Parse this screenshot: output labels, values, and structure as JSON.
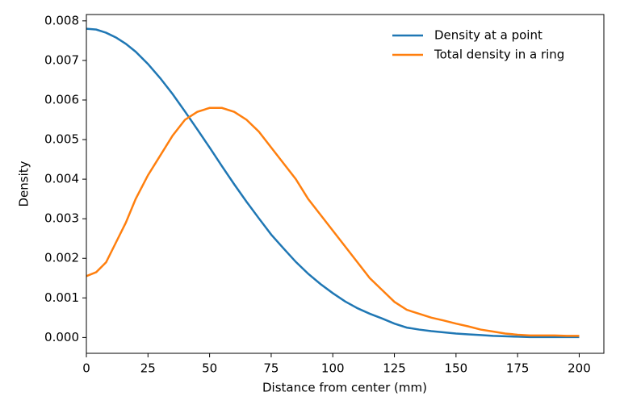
{
  "chart_data": {
    "type": "line",
    "xlabel": "Distance from center (mm)",
    "ylabel": "Density",
    "x": [
      0,
      4,
      8,
      12,
      16,
      20,
      25,
      30,
      35,
      40,
      45,
      50,
      55,
      60,
      65,
      70,
      75,
      80,
      85,
      90,
      95,
      100,
      105,
      110,
      115,
      120,
      125,
      130,
      135,
      140,
      145,
      150,
      155,
      160,
      165,
      170,
      175,
      180,
      185,
      190,
      195,
      200
    ],
    "series": [
      {
        "name": "Density at a point",
        "color": "#1f77b4",
        "values": [
          0.0078,
          0.00778,
          0.0077,
          0.00758,
          0.00742,
          0.00722,
          0.00691,
          0.00655,
          0.00615,
          0.00571,
          0.00526,
          0.0048,
          0.00433,
          0.00387,
          0.00343,
          0.00301,
          0.0026,
          0.00225,
          0.00191,
          0.00161,
          0.00135,
          0.00112,
          0.00091,
          0.00074,
          0.0006,
          0.00048,
          0.00035,
          0.00025,
          0.0002,
          0.00016,
          0.00013,
          0.0001,
          8e-05,
          6e-05,
          4e-05,
          3e-05,
          2e-05,
          1e-05,
          1e-05,
          1e-05,
          1e-05,
          1e-05
        ]
      },
      {
        "name": "Total density in a ring",
        "color": "#ff7f0e",
        "values": [
          0.00155,
          0.00165,
          0.0019,
          0.0024,
          0.0029,
          0.0035,
          0.0041,
          0.0046,
          0.0051,
          0.0055,
          0.0057,
          0.0058,
          0.0058,
          0.0057,
          0.0055,
          0.0052,
          0.0048,
          0.0044,
          0.004,
          0.0035,
          0.0031,
          0.0027,
          0.0023,
          0.0019,
          0.0015,
          0.0012,
          0.0009,
          0.0007,
          0.0006,
          0.0005,
          0.00043,
          0.00035,
          0.00028,
          0.0002,
          0.00015,
          0.0001,
          7e-05,
          5e-05,
          5e-05,
          5e-05,
          4e-05,
          4e-05
        ]
      }
    ],
    "xlim": [
      0,
      210
    ],
    "ylim": [
      -0.0004,
      0.00816
    ],
    "xticks": [
      0,
      25,
      50,
      75,
      100,
      125,
      150,
      175,
      200
    ],
    "yticks": [
      {
        "value": 0,
        "label": "0.000"
      },
      {
        "value": 0.001,
        "label": "0.001"
      },
      {
        "value": 0.002,
        "label": "0.002"
      },
      {
        "value": 0.003,
        "label": "0.003"
      },
      {
        "value": 0.004,
        "label": "0.004"
      },
      {
        "value": 0.005,
        "label": "0.005"
      },
      {
        "value": 0.006,
        "label": "0.006"
      },
      {
        "value": 0.007,
        "label": "0.007"
      },
      {
        "value": 0.008,
        "label": "0.008"
      }
    ],
    "grid": false,
    "legend": "upper right"
  }
}
